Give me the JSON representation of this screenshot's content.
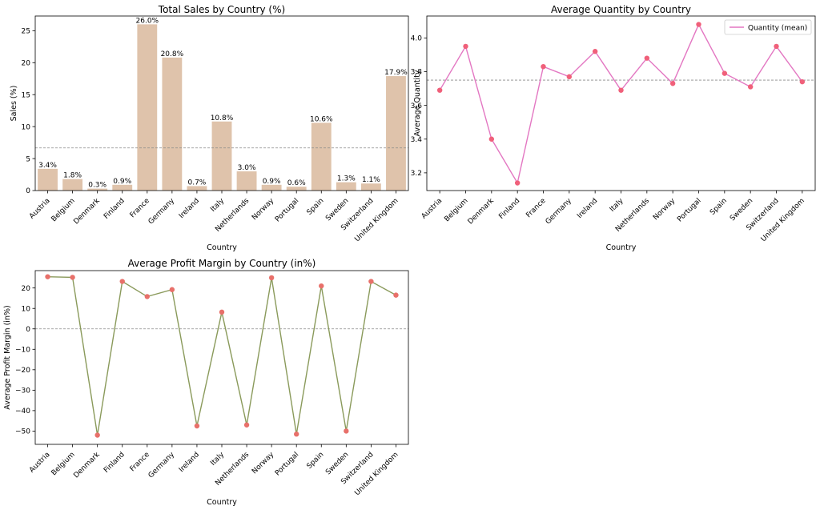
{
  "chart_data": [
    {
      "type": "bar",
      "title": "Total Sales by Country (%)",
      "xlabel": "Country",
      "ylabel": "Sales (%)",
      "categories": [
        "Austria",
        "Belgium",
        "Denmark",
        "Finland",
        "France",
        "Germany",
        "Ireland",
        "Italy",
        "Netherlands",
        "Norway",
        "Portugal",
        "Spain",
        "Sweden",
        "Switzerland",
        "United Kingdom"
      ],
      "values": [
        3.4,
        1.8,
        0.3,
        0.9,
        26.0,
        20.8,
        0.7,
        10.8,
        3.0,
        0.9,
        0.6,
        10.6,
        1.3,
        1.1,
        17.9
      ],
      "data_labels": [
        "3.4%",
        "1.8%",
        "0.3%",
        "0.9%",
        "26.0%",
        "20.8%",
        "0.7%",
        "10.8%",
        "3.0%",
        "0.9%",
        "0.6%",
        "10.6%",
        "1.3%",
        "1.1%",
        "17.9%"
      ],
      "reference_line": 6.67,
      "ylim": [
        0,
        27.3
      ],
      "yticks": [
        0,
        5,
        10,
        15,
        20,
        25
      ],
      "ytick_labels": [
        "0",
        "5",
        "10",
        "15",
        "20",
        "25"
      ],
      "bar_color": "#dfc3ab",
      "grid": false
    },
    {
      "type": "line",
      "title": "Average Quantity by Country",
      "xlabel": "Country",
      "ylabel": "Average Quantity",
      "categories": [
        "Austria",
        "Belgium",
        "Denmark",
        "Finland",
        "France",
        "Germany",
        "Ireland",
        "Italy",
        "Netherlands",
        "Norway",
        "Portugal",
        "Spain",
        "Sweden",
        "Switzerland",
        "United Kingdom"
      ],
      "series": [
        {
          "name": "Quantity (mean)",
          "values": [
            3.69,
            3.95,
            3.4,
            3.14,
            3.83,
            3.77,
            3.92,
            3.69,
            3.88,
            3.73,
            4.08,
            3.79,
            3.71,
            3.95,
            3.74
          ]
        }
      ],
      "reference_line": 3.75,
      "ylim": [
        3.095,
        4.13
      ],
      "yticks": [
        3.2,
        3.4,
        3.6,
        3.8,
        4.0
      ],
      "ytick_labels": [
        "3.2",
        "3.4",
        "3.6",
        "3.8",
        "4.0"
      ],
      "legend": "top-right",
      "line_color": "#e377c2",
      "marker_color": "#f0607a",
      "grid": false
    },
    {
      "type": "line",
      "title": "Average Profit Margin by Country (in%)",
      "xlabel": "Country",
      "ylabel": "Average Profit Margin (in%)",
      "categories": [
        "Austria",
        "Belgium",
        "Denmark",
        "Finland",
        "France",
        "Germany",
        "Ireland",
        "Italy",
        "Netherlands",
        "Norway",
        "Portugal",
        "Spain",
        "Sweden",
        "Switzerland",
        "United Kingdom"
      ],
      "series": [
        {
          "values": [
            25.5,
            25.2,
            -52.0,
            23.2,
            15.8,
            19.2,
            -47.5,
            8.2,
            -47.0,
            25.0,
            -51.5,
            21.0,
            -50.0,
            23.2,
            16.5
          ]
        }
      ],
      "reference_line": 0,
      "ylim": [
        -56.5,
        28.5
      ],
      "yticks": [
        -50,
        -40,
        -30,
        -20,
        -10,
        0,
        10,
        20
      ],
      "ytick_labels": [
        "−50",
        "−40",
        "−30",
        "−20",
        "−10",
        "0",
        "10",
        "20"
      ],
      "line_color": "#8a9a5b",
      "marker_color": "#e8706a",
      "grid": false
    }
  ]
}
